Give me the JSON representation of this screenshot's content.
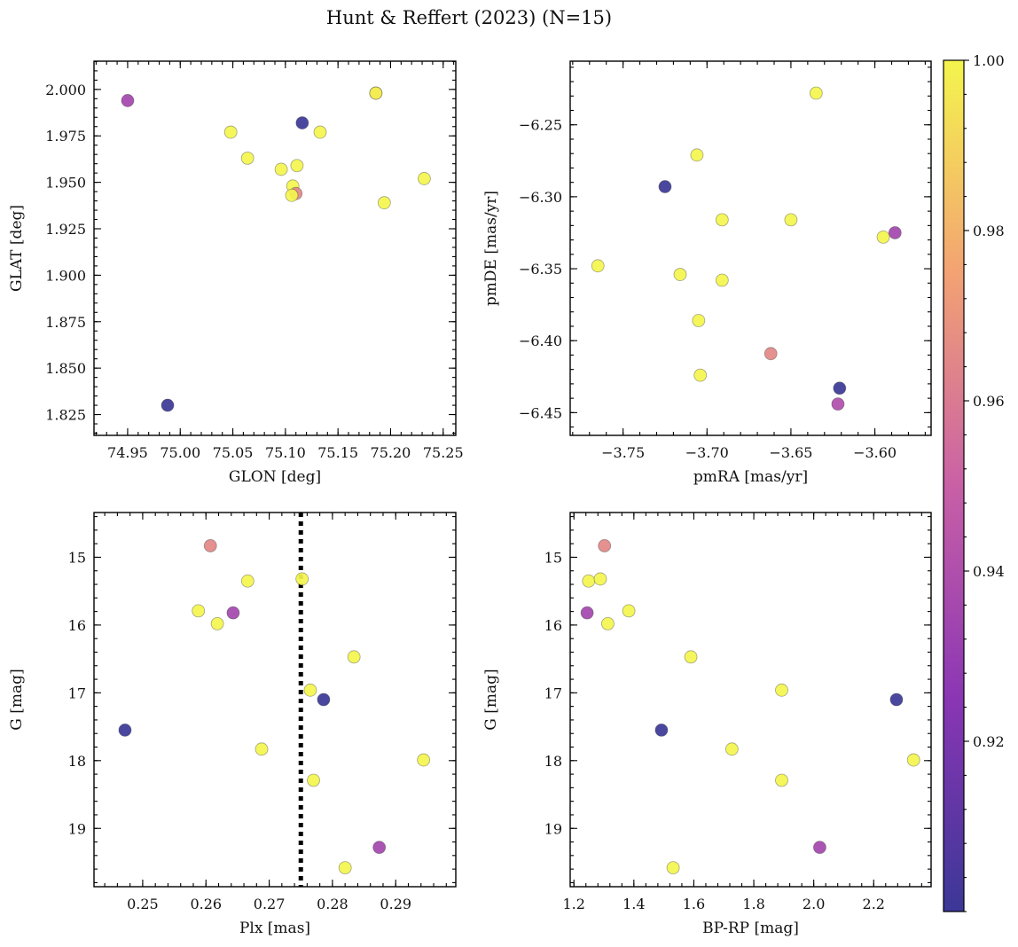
{
  "chart_data": {
    "type": "scatter",
    "title": "Hunt & Reffert (2023) (N=15)",
    "colorbar": {
      "colormap": "plasma",
      "range": [
        0.9,
        1.0
      ],
      "ticks": [
        "0.92",
        "0.94",
        "0.96",
        "0.98",
        "1.00"
      ],
      "tick_values": [
        0.92,
        0.94,
        0.96,
        0.98,
        1.0
      ]
    },
    "panels": [
      {
        "id": "glon-glat",
        "xlabel": "GLON [deg]",
        "ylabel": "GLAT [deg]",
        "xlim": [
          74.918,
          75.262
        ],
        "ylim": [
          1.8138,
          2.0152
        ],
        "y_inverted": false,
        "xticks": [
          "74.95",
          "75.00",
          "75.05",
          "75.10",
          "75.15",
          "75.20",
          "75.25"
        ],
        "xtick_values": [
          74.95,
          75.0,
          75.05,
          75.1,
          75.15,
          75.2,
          75.25
        ],
        "yticks": [
          "1.825",
          "1.850",
          "1.875",
          "1.900",
          "1.925",
          "1.950",
          "1.975",
          "2.000"
        ],
        "ytick_values": [
          1.825,
          1.85,
          1.875,
          1.9,
          1.925,
          1.95,
          1.975,
          2.0
        ],
        "points": [
          {
            "x": 74.95,
            "y": 1.994,
            "c": 0.935
          },
          {
            "x": 74.988,
            "y": 1.83,
            "c": 0.9
          },
          {
            "x": 75.048,
            "y": 1.977,
            "c": 1.0
          },
          {
            "x": 75.064,
            "y": 1.963,
            "c": 1.0
          },
          {
            "x": 75.096,
            "y": 1.957,
            "c": 1.0
          },
          {
            "x": 75.107,
            "y": 1.948,
            "c": 1.0
          },
          {
            "x": 75.11,
            "y": 1.944,
            "c": 0.965
          },
          {
            "x": 75.106,
            "y": 1.943,
            "c": 1.0
          },
          {
            "x": 75.111,
            "y": 1.959,
            "c": 1.0
          },
          {
            "x": 75.116,
            "y": 1.982,
            "c": 0.9
          },
          {
            "x": 75.133,
            "y": 1.977,
            "c": 1.0
          },
          {
            "x": 75.186,
            "y": 1.998,
            "c": 0.96
          },
          {
            "x": 75.186,
            "y": 1.998,
            "c": 1.0
          },
          {
            "x": 75.194,
            "y": 1.939,
            "c": 1.0
          },
          {
            "x": 75.232,
            "y": 1.952,
            "c": 1.0
          }
        ]
      },
      {
        "id": "pmra-pmde",
        "xlabel": "pmRA [mas/yr]",
        "ylabel": "pmDE [mas/yr]",
        "xlim": [
          -3.7815,
          -3.5665
        ],
        "ylim": [
          -6.4658,
          -6.2058
        ],
        "y_inverted": false,
        "xticks": [
          "−3.75",
          "−3.70",
          "−3.65",
          "−3.60"
        ],
        "xtick_values": [
          -3.75,
          -3.7,
          -3.65,
          -3.6
        ],
        "yticks": [
          "−6.45",
          "−6.40",
          "−6.35",
          "−6.30",
          "−6.25"
        ],
        "ytick_values": [
          -6.45,
          -6.4,
          -6.35,
          -6.3,
          -6.25
        ],
        "points": [
          {
            "x": -3.635,
            "y": -6.228,
            "c": 1.0
          },
          {
            "x": -3.706,
            "y": -6.271,
            "c": 1.0
          },
          {
            "x": -3.725,
            "y": -6.293,
            "c": 0.9
          },
          {
            "x": -3.691,
            "y": -6.316,
            "c": 1.0
          },
          {
            "x": -3.65,
            "y": -6.316,
            "c": 1.0
          },
          {
            "x": -3.588,
            "y": -6.325,
            "c": 0.935
          },
          {
            "x": -3.595,
            "y": -6.328,
            "c": 1.0
          },
          {
            "x": -3.765,
            "y": -6.348,
            "c": 1.0
          },
          {
            "x": -3.716,
            "y": -6.354,
            "c": 1.0
          },
          {
            "x": -3.691,
            "y": -6.358,
            "c": 1.0
          },
          {
            "x": -3.705,
            "y": -6.386,
            "c": 1.0
          },
          {
            "x": -3.662,
            "y": -6.409,
            "c": 0.965
          },
          {
            "x": -3.704,
            "y": -6.424,
            "c": 1.0
          },
          {
            "x": -3.621,
            "y": -6.433,
            "c": 0.9
          },
          {
            "x": -3.622,
            "y": -6.444,
            "c": 0.94
          }
        ]
      },
      {
        "id": "plx-g",
        "xlabel": "Plx [mas]",
        "ylabel": "G [mag]",
        "xlim": [
          0.2423,
          0.2995
        ],
        "ylim": [
          14.34,
          19.86
        ],
        "y_inverted": true,
        "vline": {
          "x": 0.275,
          "style": "dotted"
        },
        "xticks": [
          "0.25",
          "0.26",
          "0.27",
          "0.28",
          "0.29"
        ],
        "xtick_values": [
          0.25,
          0.26,
          0.27,
          0.28,
          0.29
        ],
        "yticks": [
          "15",
          "16",
          "17",
          "18",
          "19"
        ],
        "ytick_values": [
          15,
          16,
          17,
          18,
          19
        ],
        "points": [
          {
            "x": 0.2607,
            "y": 14.83,
            "c": 0.965
          },
          {
            "x": 0.2666,
            "y": 15.35,
            "c": 1.0
          },
          {
            "x": 0.2752,
            "y": 15.32,
            "c": 1.0
          },
          {
            "x": 0.2588,
            "y": 15.79,
            "c": 1.0
          },
          {
            "x": 0.2643,
            "y": 15.82,
            "c": 0.935
          },
          {
            "x": 0.2618,
            "y": 15.98,
            "c": 1.0
          },
          {
            "x": 0.2834,
            "y": 16.47,
            "c": 1.0
          },
          {
            "x": 0.2765,
            "y": 16.96,
            "c": 1.0
          },
          {
            "x": 0.2786,
            "y": 17.1,
            "c": 0.9
          },
          {
            "x": 0.2472,
            "y": 17.55,
            "c": 0.9
          },
          {
            "x": 0.2688,
            "y": 17.83,
            "c": 1.0
          },
          {
            "x": 0.2944,
            "y": 17.99,
            "c": 1.0
          },
          {
            "x": 0.277,
            "y": 18.29,
            "c": 1.0
          },
          {
            "x": 0.2874,
            "y": 19.28,
            "c": 0.935
          },
          {
            "x": 0.282,
            "y": 19.58,
            "c": 1.0
          }
        ]
      },
      {
        "id": "bprp-g",
        "xlabel": "BP-RP [mag]",
        "ylabel": "G [mag]",
        "xlim": [
          1.1875,
          2.3915
        ],
        "ylim": [
          14.34,
          19.86
        ],
        "y_inverted": true,
        "xticks": [
          "1.2",
          "1.4",
          "1.6",
          "1.8",
          "2.0",
          "2.2"
        ],
        "xtick_values": [
          1.2,
          1.4,
          1.6,
          1.8,
          2.0,
          2.2
        ],
        "yticks": [
          "15",
          "16",
          "17",
          "18",
          "19"
        ],
        "ytick_values": [
          15,
          16,
          17,
          18,
          19
        ],
        "points": [
          {
            "x": 1.302,
            "y": 14.83,
            "c": 0.965
          },
          {
            "x": 1.249,
            "y": 15.35,
            "c": 1.0
          },
          {
            "x": 1.288,
            "y": 15.32,
            "c": 1.0
          },
          {
            "x": 1.383,
            "y": 15.79,
            "c": 1.0
          },
          {
            "x": 1.244,
            "y": 15.82,
            "c": 0.935
          },
          {
            "x": 1.313,
            "y": 15.98,
            "c": 1.0
          },
          {
            "x": 1.59,
            "y": 16.47,
            "c": 1.0
          },
          {
            "x": 1.893,
            "y": 16.96,
            "c": 1.0
          },
          {
            "x": 2.276,
            "y": 17.1,
            "c": 0.9
          },
          {
            "x": 1.492,
            "y": 17.55,
            "c": 0.9
          },
          {
            "x": 1.727,
            "y": 17.83,
            "c": 1.0
          },
          {
            "x": 2.333,
            "y": 17.99,
            "c": 1.0
          },
          {
            "x": 1.893,
            "y": 18.29,
            "c": 1.0
          },
          {
            "x": 2.02,
            "y": 19.28,
            "c": 0.935
          },
          {
            "x": 1.531,
            "y": 19.58,
            "c": 1.0
          }
        ]
      }
    ]
  }
}
